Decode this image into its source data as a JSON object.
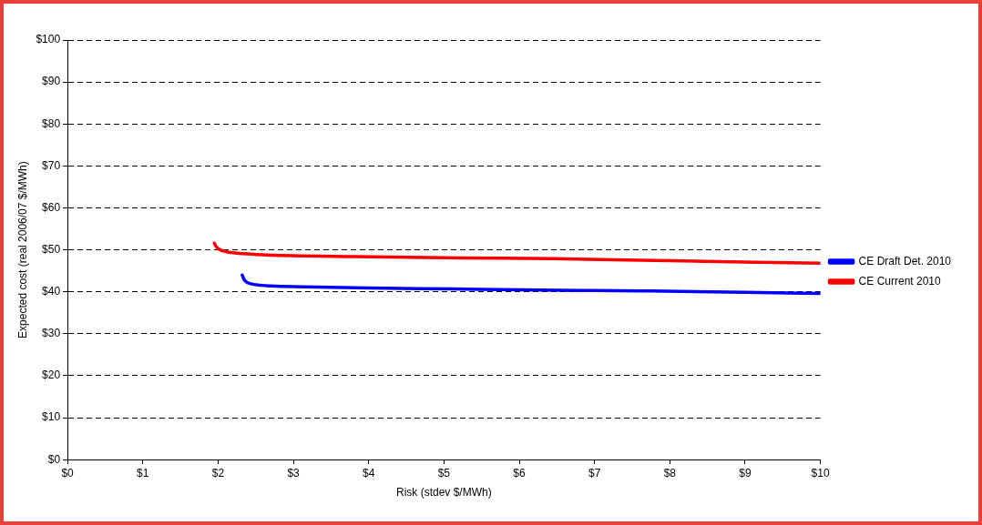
{
  "chart_data": {
    "type": "line",
    "xlabel": "Risk (stdev $/MWh)",
    "ylabel": "Expected cost (real 2006/07 $/MWh)",
    "series": [
      {
        "name": "CE Draft Det. 2010",
        "color": "#0000ff",
        "x": [
          2.32,
          2.35,
          2.4,
          2.5,
          2.7,
          3.15,
          4,
          5.12,
          6,
          7,
          7.74,
          9,
          10
        ],
        "values": [
          44.0,
          42.8,
          42.1,
          41.7,
          41.4,
          41.2,
          40.9,
          40.7,
          40.5,
          40.3,
          40.2,
          39.9,
          39.6
        ]
      },
      {
        "name": "CE Current 2010",
        "color": "#ff0000",
        "x": [
          1.95,
          1.97,
          2.02,
          2.1,
          2.2,
          2.5,
          3,
          3.81,
          5,
          6.43,
          8,
          10
        ],
        "values": [
          51.6,
          50.9,
          50.1,
          49.6,
          49.3,
          48.9,
          48.6,
          48.4,
          48.1,
          47.9,
          47.4,
          46.8
        ]
      }
    ],
    "xlim": [
      0,
      10
    ],
    "xticks": [
      {
        "value": 0,
        "label": "$0"
      },
      {
        "value": 1,
        "label": "$1"
      },
      {
        "value": 2,
        "label": "$2"
      },
      {
        "value": 3,
        "label": "$3"
      },
      {
        "value": 4,
        "label": "$4"
      },
      {
        "value": 5,
        "label": "$5"
      },
      {
        "value": 6,
        "label": "$6"
      },
      {
        "value": 7,
        "label": "$7"
      },
      {
        "value": 8,
        "label": "$8"
      },
      {
        "value": 9,
        "label": "$9"
      },
      {
        "value": 10,
        "label": "$10"
      }
    ],
    "ylim": [
      0,
      100
    ],
    "yticks": [
      {
        "value": 0,
        "label": "$0"
      },
      {
        "value": 10,
        "label": "$10"
      },
      {
        "value": 20,
        "label": "$20"
      },
      {
        "value": 30,
        "label": "$30"
      },
      {
        "value": 40,
        "label": "$40"
      },
      {
        "value": 50,
        "label": "$50"
      },
      {
        "value": 60,
        "label": "$60"
      },
      {
        "value": 70,
        "label": "$70"
      },
      {
        "value": 80,
        "label": "$80"
      },
      {
        "value": 90,
        "label": "$90"
      },
      {
        "value": 100,
        "label": "$100"
      }
    ],
    "grid": "y",
    "legend": "right",
    "marker": "none",
    "line_style": "solid"
  }
}
